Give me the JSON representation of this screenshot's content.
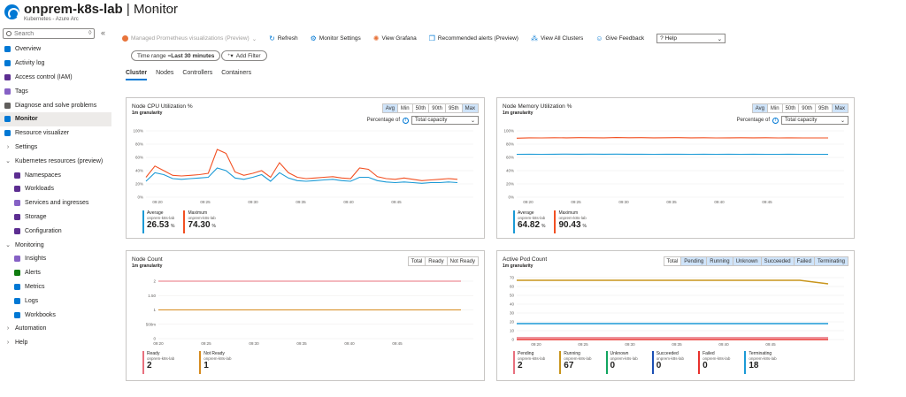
{
  "header": {
    "title": "onprem-k8s-lab",
    "title_sep": " | ",
    "page": "Monitor",
    "subtitle": "Kubernetes - Azure Arc"
  },
  "sidebar": {
    "search_placeholder": "Search",
    "items": [
      {
        "label": "Overview",
        "icon": "overview-icon",
        "color": "#0078d4",
        "indent": 0,
        "chevron": ""
      },
      {
        "label": "Activity log",
        "icon": "activity-log-icon",
        "color": "#0078d4",
        "indent": 0,
        "chevron": ""
      },
      {
        "label": "Access control (IAM)",
        "icon": "iam-icon",
        "color": "#5c2d91",
        "indent": 0,
        "chevron": ""
      },
      {
        "label": "Tags",
        "icon": "tag-icon",
        "color": "#8661c5",
        "indent": 0,
        "chevron": ""
      },
      {
        "label": "Diagnose and solve problems",
        "icon": "wrench-icon",
        "color": "#605e5c",
        "indent": 0,
        "chevron": ""
      },
      {
        "label": "Monitor",
        "icon": "monitor-icon",
        "color": "#0078d4",
        "indent": 0,
        "chevron": "",
        "active": true
      },
      {
        "label": "Resource visualizer",
        "icon": "visualizer-icon",
        "color": "#0078d4",
        "indent": 0,
        "chevron": ""
      },
      {
        "label": "Settings",
        "icon": "",
        "color": "",
        "indent": 0,
        "chevron": "›"
      },
      {
        "label": "Kubernetes resources (preview)",
        "icon": "",
        "color": "",
        "indent": 0,
        "chevron": "⌄"
      },
      {
        "label": "Namespaces",
        "icon": "namespaces-icon",
        "color": "#5c2d91",
        "indent": 1,
        "chevron": ""
      },
      {
        "label": "Workloads",
        "icon": "workloads-icon",
        "color": "#5c2d91",
        "indent": 1,
        "chevron": ""
      },
      {
        "label": "Services and ingresses",
        "icon": "services-icon",
        "color": "#8661c5",
        "indent": 1,
        "chevron": ""
      },
      {
        "label": "Storage",
        "icon": "storage-icon",
        "color": "#5c2d91",
        "indent": 1,
        "chevron": ""
      },
      {
        "label": "Configuration",
        "icon": "configuration-icon",
        "color": "#5c2d91",
        "indent": 1,
        "chevron": ""
      },
      {
        "label": "Monitoring",
        "icon": "",
        "color": "",
        "indent": 0,
        "chevron": "⌄"
      },
      {
        "label": "Insights",
        "icon": "insights-icon",
        "color": "#8661c5",
        "indent": 1,
        "chevron": ""
      },
      {
        "label": "Alerts",
        "icon": "alerts-icon",
        "color": "#107c10",
        "indent": 1,
        "chevron": ""
      },
      {
        "label": "Metrics",
        "icon": "metrics-icon",
        "color": "#0078d4",
        "indent": 1,
        "chevron": ""
      },
      {
        "label": "Logs",
        "icon": "logs-icon",
        "color": "#0078d4",
        "indent": 1,
        "chevron": ""
      },
      {
        "label": "Workbooks",
        "icon": "workbooks-icon",
        "color": "#0078d4",
        "indent": 1,
        "chevron": ""
      },
      {
        "label": "Automation",
        "icon": "",
        "color": "",
        "indent": 0,
        "chevron": "›"
      },
      {
        "label": "Help",
        "icon": "",
        "color": "",
        "indent": 0,
        "chevron": "›"
      }
    ]
  },
  "toolbar": {
    "prometheus": "Managed Prometheus visualizations (Preview)",
    "refresh": "Refresh",
    "monitor_settings": "Monitor Settings",
    "view_grafana": "View Grafana",
    "recommended_alerts": "Recommended alerts (Preview)",
    "view_all_clusters": "View All Clusters",
    "give_feedback": "Give Feedback",
    "help": "Help"
  },
  "filters": {
    "time_range_label": "Time range = ",
    "time_range_value": "Last 30 minutes",
    "add_filter": "Add Filter"
  },
  "tabs": [
    "Cluster",
    "Nodes",
    "Controllers",
    "Containers"
  ],
  "cards": {
    "cpu": {
      "title": "Node CPU Utilization %",
      "granularity": "1m granularity",
      "buttons": [
        "Avg",
        "Min",
        "50th",
        "90th",
        "95th",
        "Max"
      ],
      "selected": [
        "Avg",
        "Max"
      ],
      "pct_label": "Percentage of",
      "pct_value": "Total capacity",
      "legend": [
        {
          "name": "Average",
          "sub": "onprem-k8s-lab",
          "value": "26.53",
          "unit": "%",
          "color": "#1b9ad6"
        },
        {
          "name": "Maximum",
          "sub": "onprem-k8s-lab",
          "value": "74.30",
          "unit": "%",
          "color": "#f25022"
        }
      ]
    },
    "memory": {
      "title": "Node Memory Utilization %",
      "granularity": "1m granularity",
      "buttons": [
        "Avg",
        "Min",
        "50th",
        "90th",
        "95th",
        "Max"
      ],
      "selected": [
        "Avg",
        "Max"
      ],
      "pct_label": "Percentage of",
      "pct_value": "Total capacity",
      "legend": [
        {
          "name": "Average",
          "sub": "onprem-k8s-lab",
          "value": "64.82",
          "unit": "%",
          "color": "#1b9ad6"
        },
        {
          "name": "Maximum",
          "sub": "onprem-k8s-lab",
          "value": "90.43",
          "unit": "%",
          "color": "#f25022"
        }
      ]
    },
    "nodes": {
      "title": "Node Count",
      "granularity": "1m granularity",
      "buttons": [
        "Total",
        "Ready",
        "Not Ready"
      ],
      "selected": [],
      "legend": [
        {
          "name": "Ready",
          "sub": "onprem-k8s-lab",
          "value": "2",
          "unit": "",
          "color": "#e8707e"
        },
        {
          "name": "Not Ready",
          "sub": "onprem-k8s-lab",
          "value": "1",
          "unit": "",
          "color": "#d68b1f"
        }
      ]
    },
    "pods": {
      "title": "Active Pod Count",
      "granularity": "1m granularity",
      "buttons": [
        "Total",
        "Pending",
        "Running",
        "Unknown",
        "Succeeded",
        "Failed",
        "Terminating"
      ],
      "selected": [
        "Pending",
        "Running",
        "Unknown",
        "Succeeded",
        "Failed",
        "Terminating"
      ],
      "legend": [
        {
          "name": "Pending",
          "sub": "onprem-k8s-lab",
          "value": "2",
          "unit": "",
          "color": "#e8707e"
        },
        {
          "name": "Running",
          "sub": "onprem-k8s-lab",
          "value": "67",
          "unit": "",
          "color": "#c8951c"
        },
        {
          "name": "Unknown",
          "sub": "onprem-k8s-lab",
          "value": "0",
          "unit": "",
          "color": "#11a55f"
        },
        {
          "name": "Succeeded",
          "sub": "onprem-k8s-lab",
          "value": "0",
          "unit": "",
          "color": "#1b4fb4"
        },
        {
          "name": "Failed",
          "sub": "onprem-k8s-lab",
          "value": "0",
          "unit": "",
          "color": "#e8312d"
        },
        {
          "name": "Terminating",
          "sub": "onprem-k8s-lab",
          "value": "18",
          "unit": "",
          "color": "#1b9ad6"
        }
      ]
    }
  },
  "chart_data": [
    {
      "type": "line",
      "title": "Node CPU Utilization %",
      "x_ticks": [
        "09:20",
        "09:25",
        "09:30",
        "09:35",
        "09:40",
        "09:45"
      ],
      "y_ticks": [
        "0%",
        "20%",
        "40%",
        "60%",
        "80%",
        "100%"
      ],
      "ylim": [
        0,
        100
      ],
      "series": [
        {
          "name": "Maximum",
          "color": "#f25022",
          "values": [
            30,
            47,
            40,
            33,
            32,
            33,
            34,
            36,
            72,
            66,
            38,
            33,
            36,
            40,
            30,
            52,
            37,
            30,
            28,
            29,
            30,
            31,
            29,
            28,
            44,
            42,
            31,
            28,
            27,
            29,
            27,
            25,
            26,
            27,
            28,
            27
          ]
        },
        {
          "name": "Average",
          "color": "#1b9ad6",
          "values": [
            24,
            37,
            34,
            28,
            27,
            28,
            29,
            30,
            44,
            40,
            29,
            27,
            30,
            34,
            24,
            37,
            29,
            25,
            24,
            25,
            26,
            27,
            25,
            24,
            30,
            30,
            25,
            23,
            22,
            23,
            22,
            21,
            22,
            22,
            23,
            22
          ]
        }
      ]
    },
    {
      "type": "line",
      "title": "Node Memory Utilization %",
      "x_ticks": [
        "09:20",
        "09:25",
        "09:30",
        "09:35",
        "09:40",
        "09:45"
      ],
      "y_ticks": [
        "0%",
        "20%",
        "40%",
        "60%",
        "80%",
        "100%"
      ],
      "ylim": [
        0,
        100
      ],
      "series": [
        {
          "name": "Maximum",
          "color": "#f25022",
          "values": [
            89,
            89.5,
            89.4,
            89.6,
            89.5,
            89.7,
            89.6,
            89.5,
            89.8,
            89.6,
            89.7,
            89.5,
            89.6,
            89.7,
            89.5,
            89.6,
            89.4,
            89.5,
            89.6,
            89.5,
            89.6,
            89.4,
            89.5,
            89.3,
            89.4,
            89.3
          ]
        },
        {
          "name": "Average",
          "color": "#1b9ad6",
          "values": [
            64.5,
            64.8,
            64.7,
            64.8,
            64.9,
            64.8,
            64.9,
            64.8,
            64.9,
            64.8,
            64.8,
            64.7,
            64.8,
            64.8,
            64.7,
            64.8,
            64.7,
            64.8,
            64.7,
            64.8,
            64.7,
            64.7,
            64.8,
            64.7,
            64.7,
            64.6
          ]
        }
      ]
    },
    {
      "type": "line",
      "title": "Node Count",
      "x_ticks": [
        "09:20",
        "09:25",
        "09:30",
        "09:35",
        "09:40",
        "09:45"
      ],
      "y_ticks": [
        "0",
        "500m",
        "1",
        "1.50",
        "2"
      ],
      "ylim": [
        0,
        2
      ],
      "series": [
        {
          "name": "Ready",
          "color": "#e8707e",
          "values": [
            2,
            2,
            2,
            2,
            2,
            2,
            2,
            2
          ]
        },
        {
          "name": "Not Ready",
          "color": "#d68b1f",
          "values": [
            1,
            1,
            1,
            1,
            1,
            1,
            1,
            1
          ]
        }
      ]
    },
    {
      "type": "line",
      "title": "Active Pod Count",
      "x_ticks": [
        "09:20",
        "09:25",
        "09:30",
        "09:35",
        "09:40",
        "09:45"
      ],
      "y_ticks": [
        "0",
        "10",
        "20",
        "30",
        "40",
        "50",
        "60",
        "70"
      ],
      "ylim": [
        0,
        70
      ],
      "series": [
        {
          "name": "Running",
          "color": "#c8951c",
          "values": [
            67,
            67,
            67,
            67,
            67,
            67,
            67,
            67,
            67,
            67,
            67,
            63
          ]
        },
        {
          "name": "Terminating",
          "color": "#1b9ad6",
          "values": [
            18,
            18,
            18,
            18,
            18,
            18,
            18,
            18,
            18,
            18,
            18,
            18
          ]
        },
        {
          "name": "Pending",
          "color": "#e8707e",
          "values": [
            2,
            2,
            2,
            2,
            2,
            2,
            2,
            2,
            2,
            2,
            2,
            2
          ]
        },
        {
          "name": "Failed",
          "color": "#e8312d",
          "values": [
            0,
            0,
            0,
            0,
            0,
            0,
            0,
            0,
            0,
            0,
            0,
            0
          ]
        }
      ]
    }
  ]
}
